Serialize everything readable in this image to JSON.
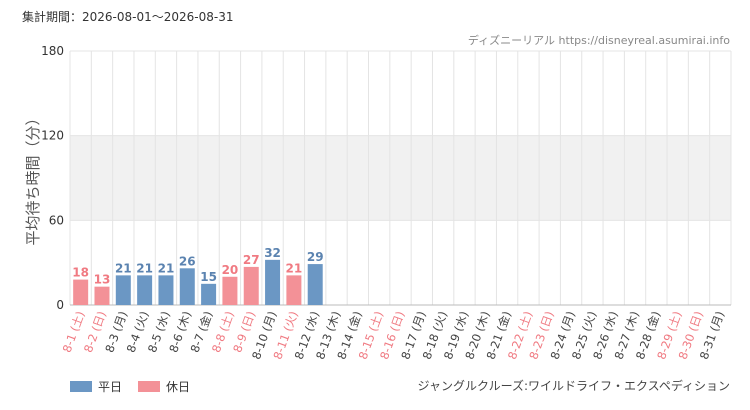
{
  "header": {
    "period": "集計期間：2026-08-01～2026-08-31",
    "site": "ディズニーリアル https://disneyreal.asumirai.info"
  },
  "footer": {
    "attraction": "ジャングルクルーズ:ワイルドライフ・エクスペディション"
  },
  "legend": {
    "weekday_label": "平日",
    "holiday_label": "休日"
  },
  "colors": {
    "weekday": "#6b97c4",
    "holiday": "#f39197",
    "weekday_text": "#5b83b0",
    "holiday_text": "#f07a82",
    "band": "#f1f1f1",
    "grid": "#e4e4e4"
  },
  "chart_data": {
    "type": "bar",
    "ylabel": "平均待ち時間（分）",
    "ylim": [
      0,
      180
    ],
    "yticks": [
      "0",
      "60",
      "120",
      "180"
    ],
    "grid": true,
    "legend_position": "bottom-left",
    "categories": [
      "8-1 (土)",
      "8-2 (日)",
      "8-3 (月)",
      "8-4 (火)",
      "8-5 (水)",
      "8-6 (木)",
      "8-7 (金)",
      "8-8 (土)",
      "8-9 (日)",
      "8-10 (月)",
      "8-11 (火)",
      "8-12 (水)",
      "8-13 (木)",
      "8-14 (金)",
      "8-15 (土)",
      "8-16 (日)",
      "8-17 (月)",
      "8-18 (火)",
      "8-19 (水)",
      "8-20 (木)",
      "8-21 (金)",
      "8-22 (土)",
      "8-23 (日)",
      "8-24 (月)",
      "8-25 (火)",
      "8-26 (水)",
      "8-27 (木)",
      "8-28 (金)",
      "8-29 (土)",
      "8-30 (日)",
      "8-31 (月)"
    ],
    "day_type": [
      "holiday",
      "holiday",
      "weekday",
      "weekday",
      "weekday",
      "weekday",
      "weekday",
      "holiday",
      "holiday",
      "weekday",
      "holiday",
      "weekday",
      "weekday",
      "weekday",
      "holiday",
      "holiday",
      "weekday",
      "weekday",
      "weekday",
      "weekday",
      "weekday",
      "holiday",
      "holiday",
      "weekday",
      "weekday",
      "weekday",
      "weekday",
      "weekday",
      "holiday",
      "holiday",
      "weekday"
    ],
    "values": [
      18,
      13,
      21,
      21,
      21,
      26,
      15,
      20,
      27,
      32,
      21,
      29,
      null,
      null,
      null,
      null,
      null,
      null,
      null,
      null,
      null,
      null,
      null,
      null,
      null,
      null,
      null,
      null,
      null,
      null,
      null
    ]
  }
}
